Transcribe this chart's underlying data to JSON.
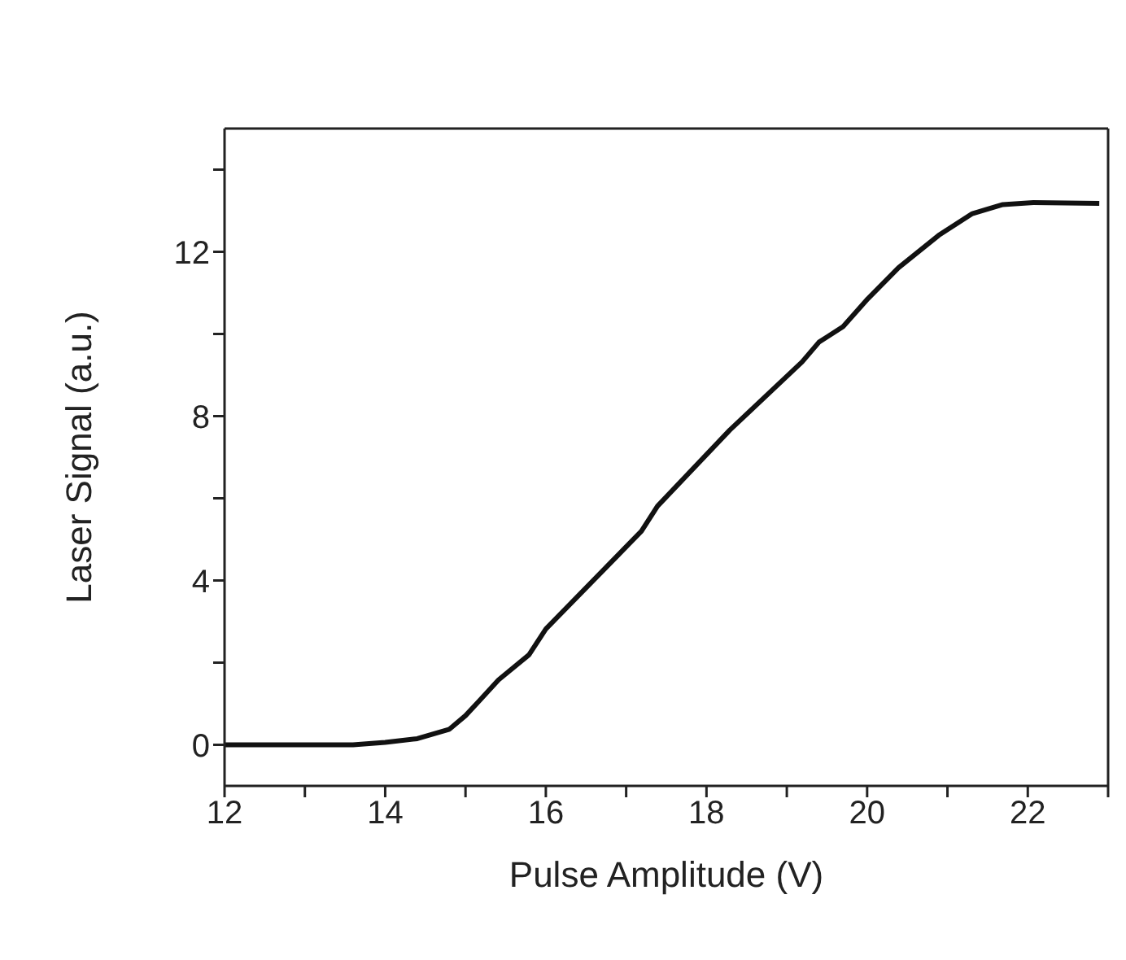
{
  "chart_data": {
    "type": "line",
    "xlabel": "Pulse Amplitude (V)",
    "ylabel": "Laser Signal (a.u.)",
    "x": [
      12,
      13.6,
      14.0,
      14.4,
      14.8,
      15.0,
      15.18,
      15.41,
      15.79,
      16.0,
      17.19,
      17.39,
      18.29,
      19.19,
      19.4,
      19.7,
      20.01,
      20.39,
      20.89,
      21.31,
      21.69,
      22.07,
      22.89
    ],
    "series": [
      {
        "color": "#111111",
        "values": [
          0,
          0,
          0.06,
          0.15,
          0.38,
          0.71,
          1.09,
          1.58,
          2.19,
          2.82,
          5.2,
          5.81,
          7.66,
          9.32,
          9.8,
          10.18,
          10.86,
          11.61,
          12.4,
          12.93,
          13.15,
          13.2,
          13.18
        ]
      }
    ],
    "xlim": [
      12,
      23
    ],
    "ylim": [
      -1,
      15
    ],
    "xticks": [
      12,
      {
        "value": 13,
        "label": null
      },
      14,
      {
        "value": 15,
        "label": null
      },
      16,
      {
        "value": 17,
        "label": null
      },
      18,
      {
        "value": 19,
        "label": null
      },
      20,
      {
        "value": 21,
        "label": null
      },
      22,
      {
        "value": 23,
        "label": null
      }
    ],
    "yticks": [
      0,
      {
        "value": 2,
        "label": null
      },
      4,
      {
        "value": 6,
        "label": null
      },
      8,
      {
        "value": 10,
        "label": null
      },
      12,
      {
        "value": 14,
        "label": null
      }
    ],
    "grid": false,
    "marker": "none",
    "line_style": "solid"
  }
}
